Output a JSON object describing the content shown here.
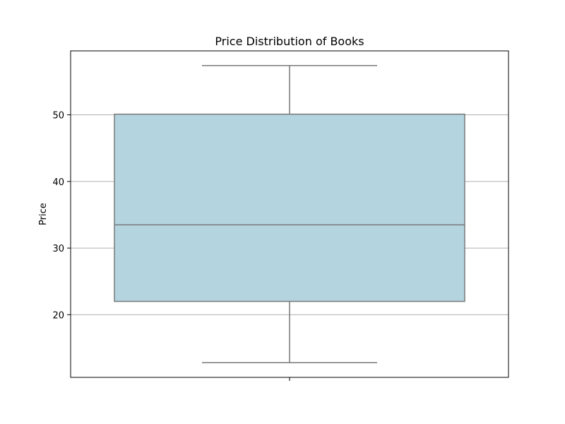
{
  "chart_data": {
    "type": "box",
    "title": "Price Distribution of Books",
    "xlabel": "",
    "ylabel": "Price",
    "ylim": [
      10.6,
      59.6
    ],
    "yticks": [
      20,
      30,
      40,
      50
    ],
    "grid": "y",
    "box_color": "#b4d5e0",
    "edge_color": "#787878",
    "box": {
      "whisker_low": 12.8,
      "q1": 22.0,
      "median": 33.5,
      "q3": 50.1,
      "whisker_high": 57.4
    }
  }
}
